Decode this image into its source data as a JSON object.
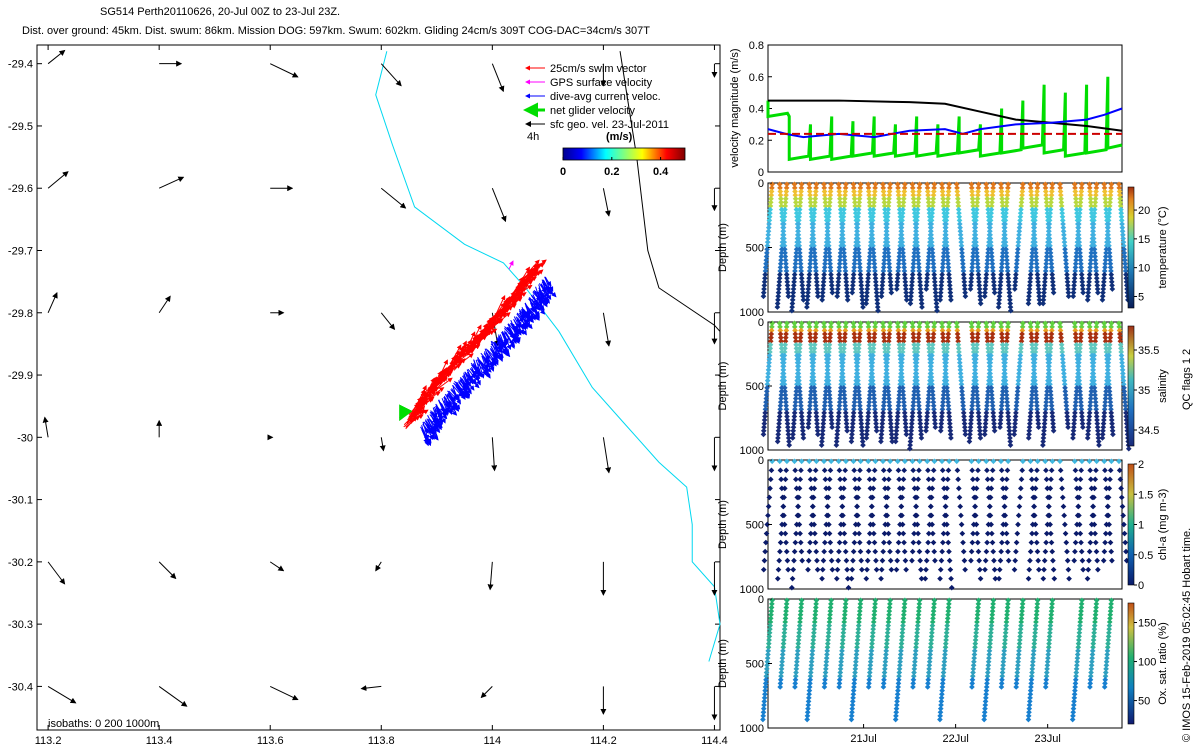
{
  "header": {
    "title": "SG514 Perth20110626, 20-Jul 00Z to 23-Jul 23Z.",
    "subtitle": "Dist. over ground: 45km. Dist. swum: 86km. Mission DOG: 597km. Swum: 602km. Gliding 24cm/s 309T COG-DAC=34cm/s 307T"
  },
  "colors": {
    "swim_vector": "#ff0000",
    "gps_surface_velocity": "#ff00ff",
    "dive_avg_current": "#0000ff",
    "net_glider_velocity": "#00dd00",
    "sfc_geo_vel": "#000000",
    "isobath": "#00d8f0",
    "mean_line": "#cc0000"
  },
  "chart_data": [
    {
      "type": "map",
      "xlabel_ticks": [
        "113.2",
        "113.4",
        "113.6",
        "113.8",
        "114",
        "114.2",
        "114.4"
      ],
      "x_ticks_values": [
        113.2,
        113.4,
        113.6,
        113.8,
        114.0,
        114.2,
        114.4
      ],
      "ylabel_ticks": [
        "-29.4",
        "-29.5",
        "-29.6",
        "-29.7",
        "-29.8",
        "-29.9",
        "-30",
        "-30.1",
        "-30.2",
        "-30.3",
        "-30.4"
      ],
      "y_ticks_values": [
        -29.4,
        -29.5,
        -29.6,
        -29.7,
        -29.8,
        -29.9,
        -30.0,
        -30.1,
        -30.2,
        -30.3,
        -30.4
      ],
      "xlim": [
        113.18,
        114.41
      ],
      "ylim": [
        -30.47,
        -29.37
      ],
      "legend": {
        "items": [
          {
            "label": "25cm/s swim vector",
            "color": "#ff0000"
          },
          {
            "label": "GPS surface velocity",
            "color": "#ff00ff"
          },
          {
            "label": "dive-avg current veloc.",
            "color": "#0000ff"
          },
          {
            "label": "net glider velocity",
            "color": "#00dd00"
          },
          {
            "label": "sfc geo. vel. 23-Jul-2011",
            "color": "#000000"
          }
        ],
        "duration": "4h",
        "colorbar_unit": "(m/s)",
        "colorbar_ticks": [
          "0",
          "0.2",
          "0.4"
        ],
        "colorbar_values": [
          0,
          0.2,
          0.4
        ],
        "colorbar_range": [
          0,
          0.5
        ]
      },
      "isobath_note": "isobaths: 0   200  1000m",
      "sfc_geo_vectors": [
        {
          "lon": 113.2,
          "lat": -29.4,
          "u": 0.15,
          "v": 0.12
        },
        {
          "lon": 113.4,
          "lat": -29.4,
          "u": 0.2,
          "v": 0.0
        },
        {
          "lon": 113.6,
          "lat": -29.4,
          "u": 0.25,
          "v": -0.12
        },
        {
          "lon": 113.8,
          "lat": -29.4,
          "u": 0.18,
          "v": -0.2
        },
        {
          "lon": 114.0,
          "lat": -29.4,
          "u": 0.1,
          "v": -0.25
        },
        {
          "lon": 114.2,
          "lat": -29.4,
          "u": 0.0,
          "v": -0.2
        },
        {
          "lon": 114.4,
          "lat": -29.4,
          "u": 0.0,
          "v": -0.12
        },
        {
          "lon": 113.2,
          "lat": -29.6,
          "u": 0.18,
          "v": 0.15
        },
        {
          "lon": 113.4,
          "lat": -29.6,
          "u": 0.22,
          "v": 0.1
        },
        {
          "lon": 113.6,
          "lat": -29.6,
          "u": 0.2,
          "v": 0.0
        },
        {
          "lon": 113.8,
          "lat": -29.6,
          "u": 0.22,
          "v": -0.18
        },
        {
          "lon": 114.0,
          "lat": -29.6,
          "u": 0.12,
          "v": -0.3
        },
        {
          "lon": 114.2,
          "lat": -29.6,
          "u": 0.05,
          "v": -0.25
        },
        {
          "lon": 114.4,
          "lat": -29.6,
          "u": 0.0,
          "v": -0.2
        },
        {
          "lon": 113.2,
          "lat": -29.8,
          "u": 0.08,
          "v": 0.18
        },
        {
          "lon": 113.4,
          "lat": -29.8,
          "u": 0.1,
          "v": 0.15
        },
        {
          "lon": 113.6,
          "lat": -29.8,
          "u": 0.12,
          "v": 0.0
        },
        {
          "lon": 113.8,
          "lat": -29.8,
          "u": 0.12,
          "v": -0.15
        },
        {
          "lon": 114.0,
          "lat": -29.8,
          "u": 0.05,
          "v": -0.3
        },
        {
          "lon": 114.2,
          "lat": -29.8,
          "u": 0.05,
          "v": -0.3
        },
        {
          "lon": 114.4,
          "lat": -29.8,
          "u": 0.0,
          "v": -0.28
        },
        {
          "lon": 113.2,
          "lat": -30.0,
          "u": -0.03,
          "v": 0.18
        },
        {
          "lon": 113.4,
          "lat": -30.0,
          "u": 0.0,
          "v": 0.15
        },
        {
          "lon": 113.6,
          "lat": -30.0,
          "u": 0.02,
          "v": 0.0
        },
        {
          "lon": 113.8,
          "lat": -30.0,
          "u": 0.02,
          "v": -0.12
        },
        {
          "lon": 114.0,
          "lat": -30.0,
          "u": 0.02,
          "v": -0.3
        },
        {
          "lon": 114.2,
          "lat": -30.0,
          "u": 0.05,
          "v": -0.32
        },
        {
          "lon": 114.4,
          "lat": -30.0,
          "u": 0.0,
          "v": -0.3
        },
        {
          "lon": 113.2,
          "lat": -30.2,
          "u": 0.15,
          "v": -0.2
        },
        {
          "lon": 113.4,
          "lat": -30.2,
          "u": 0.15,
          "v": -0.15
        },
        {
          "lon": 113.6,
          "lat": -30.2,
          "u": 0.12,
          "v": -0.08
        },
        {
          "lon": 113.8,
          "lat": -30.2,
          "u": -0.05,
          "v": -0.08
        },
        {
          "lon": 114.0,
          "lat": -30.2,
          "u": -0.02,
          "v": -0.25
        },
        {
          "lon": 114.2,
          "lat": -30.2,
          "u": 0.0,
          "v": -0.3
        },
        {
          "lon": 114.4,
          "lat": -30.2,
          "u": 0.0,
          "v": -0.3
        },
        {
          "lon": 113.2,
          "lat": -30.4,
          "u": 0.25,
          "v": -0.15
        },
        {
          "lon": 113.4,
          "lat": -30.4,
          "u": 0.25,
          "v": -0.18
        },
        {
          "lon": 113.6,
          "lat": -30.4,
          "u": 0.25,
          "v": -0.12
        },
        {
          "lon": 113.8,
          "lat": -30.4,
          "u": -0.18,
          "v": -0.02
        },
        {
          "lon": 114.0,
          "lat": -30.4,
          "u": -0.1,
          "v": -0.1
        },
        {
          "lon": 114.2,
          "lat": -30.4,
          "u": 0.0,
          "v": -0.25
        },
        {
          "lon": 114.4,
          "lat": -30.4,
          "u": 0.0,
          "v": -0.3
        }
      ],
      "glider_track": {
        "start": {
          "lon": 114.08,
          "lat": -29.74
        },
        "end": {
          "lon": 113.86,
          "lat": -29.98
        },
        "segments": 42
      },
      "isobath_coast_lon_lat": [
        [
          113.81,
          -29.38
        ],
        [
          113.79,
          -29.45
        ],
        [
          113.82,
          -29.53
        ],
        [
          113.86,
          -29.63
        ],
        [
          113.95,
          -29.69
        ],
        [
          114.02,
          -29.72
        ],
        [
          114.06,
          -29.76
        ],
        [
          114.12,
          -29.83
        ],
        [
          114.18,
          -29.92
        ],
        [
          114.24,
          -29.98
        ],
        [
          114.3,
          -30.04
        ],
        [
          114.35,
          -30.08
        ],
        [
          114.36,
          -30.14
        ],
        [
          114.36,
          -30.2
        ],
        [
          114.4,
          -30.24
        ],
        [
          114.41,
          -30.3
        ],
        [
          114.39,
          -30.36
        ]
      ],
      "sfc_geo_track_lon_lat": [
        [
          114.23,
          -29.38
        ],
        [
          114.26,
          -29.55
        ],
        [
          114.28,
          -29.7
        ],
        [
          114.3,
          -29.76
        ],
        [
          114.4,
          -29.82
        ],
        [
          114.41,
          -29.83
        ]
      ]
    },
    {
      "type": "line",
      "ylabel": "velocity magnitude (m/s)",
      "ylim": [
        0,
        0.8
      ],
      "y_ticks": [
        "0",
        "0.2",
        "0.4",
        "0.6",
        "0.8"
      ],
      "series": [
        {
          "color": "#000000",
          "x": [
            0,
            0.2,
            0.4,
            0.5,
            0.6,
            0.7,
            0.8,
            0.9,
            1.0
          ],
          "values": [
            0.45,
            0.45,
            0.44,
            0.43,
            0.38,
            0.33,
            0.31,
            0.29,
            0.26
          ]
        },
        {
          "color": "#0000ff",
          "x": [
            0,
            0.05,
            0.1,
            0.2,
            0.3,
            0.4,
            0.5,
            0.55,
            0.6,
            0.7,
            0.8,
            0.9,
            0.95,
            1.0
          ],
          "values": [
            0.27,
            0.24,
            0.22,
            0.24,
            0.22,
            0.26,
            0.27,
            0.24,
            0.27,
            0.3,
            0.31,
            0.33,
            0.36,
            0.4
          ]
        },
        {
          "color": "#cc0000",
          "x": [
            0,
            1
          ],
          "values": [
            0.24,
            0.24
          ]
        }
      ],
      "net_velocity_spikes": [
        {
          "x": 0.0,
          "values": [
            0.35,
            0.45
          ]
        },
        {
          "x": 0.06,
          "values": [
            0.08,
            0.35
          ]
        },
        {
          "x": 0.12,
          "values": [
            0.08,
            0.3
          ]
        },
        {
          "x": 0.18,
          "values": [
            0.08,
            0.35
          ]
        },
        {
          "x": 0.24,
          "values": [
            0.1,
            0.32
          ]
        },
        {
          "x": 0.3,
          "values": [
            0.1,
            0.35
          ]
        },
        {
          "x": 0.36,
          "values": [
            0.1,
            0.3
          ]
        },
        {
          "x": 0.42,
          "values": [
            0.1,
            0.35
          ]
        },
        {
          "x": 0.48,
          "values": [
            0.1,
            0.3
          ]
        },
        {
          "x": 0.54,
          "values": [
            0.12,
            0.35
          ]
        },
        {
          "x": 0.6,
          "values": [
            0.1,
            0.3
          ]
        },
        {
          "x": 0.66,
          "values": [
            0.12,
            0.4
          ]
        },
        {
          "x": 0.72,
          "values": [
            0.15,
            0.45
          ]
        },
        {
          "x": 0.78,
          "values": [
            0.12,
            0.55
          ]
        },
        {
          "x": 0.84,
          "values": [
            0.1,
            0.5
          ]
        },
        {
          "x": 0.9,
          "values": [
            0.12,
            0.55
          ]
        },
        {
          "x": 0.96,
          "values": [
            0.15,
            0.6
          ]
        }
      ]
    },
    {
      "type": "scatter",
      "ylabel": "Depth (m)",
      "colorbar_label": "temperature (°C)",
      "colorbar_ticks": [
        "5",
        "10",
        "15",
        "20"
      ],
      "colorbar_values": [
        5,
        10,
        15,
        20
      ],
      "colorbar_range": [
        3,
        24
      ],
      "y_ticks": [
        "0",
        "500",
        "1000"
      ],
      "ylim": [
        1000,
        0
      ]
    },
    {
      "type": "scatter",
      "ylabel": "Depth (m)",
      "colorbar_label": "salinity",
      "colorbar_ticks": [
        "34.5",
        "35",
        "35.5"
      ],
      "colorbar_values": [
        34.5,
        35,
        35.5
      ],
      "colorbar_range": [
        34.3,
        35.8
      ],
      "y_ticks": [
        "0",
        "500",
        "1000"
      ],
      "ylim": [
        1000,
        0
      ]
    },
    {
      "type": "scatter",
      "ylabel": "Depth (m)",
      "colorbar_label": "chl-a (mg m-3)",
      "colorbar_ticks": [
        "0",
        "0.5",
        "1",
        "1.5",
        "2"
      ],
      "colorbar_values": [
        0,
        0.5,
        1,
        1.5,
        2
      ],
      "colorbar_range": [
        0,
        2
      ],
      "y_ticks": [
        "0",
        "500",
        "1000"
      ],
      "ylim": [
        1000,
        0
      ]
    },
    {
      "type": "scatter",
      "ylabel": "Depth (m)",
      "colorbar_label": "Ox. sat. ratio (%)",
      "colorbar_ticks": [
        "50",
        "100",
        "150"
      ],
      "colorbar_values": [
        50,
        100,
        150
      ],
      "colorbar_range": [
        20,
        175
      ],
      "y_ticks": [
        "0",
        "500",
        "1000"
      ],
      "ylim": [
        1000,
        0
      ],
      "x_ticks": [
        "21Jul",
        "22Jul",
        "23Jul"
      ]
    }
  ],
  "qc_note": "QC flags 1  2",
  "credit_note": "© IMOS 15-Feb-2019 05:02:45 Hobart time."
}
